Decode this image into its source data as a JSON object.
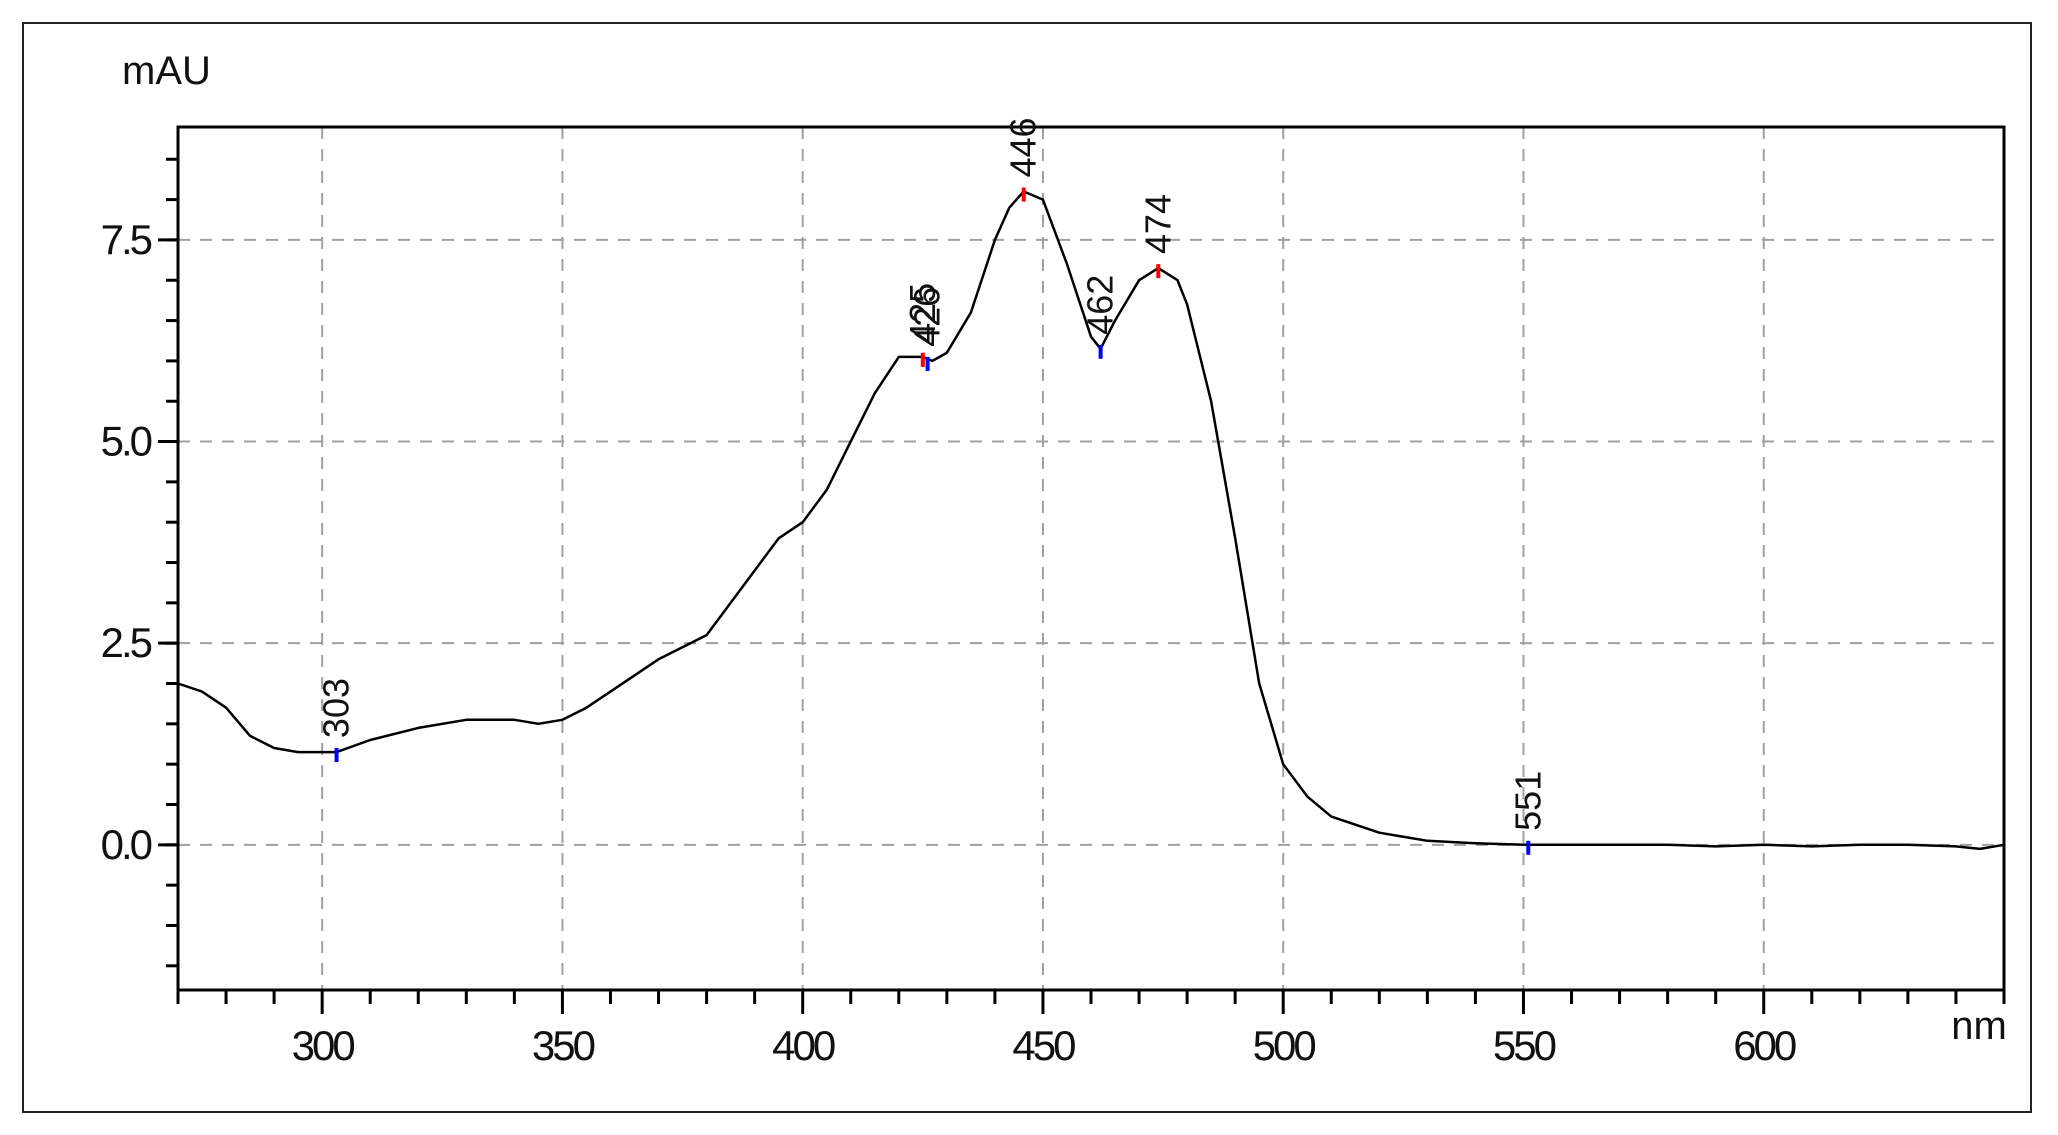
{
  "chart_data": {
    "type": "line",
    "ylabel": "mAU",
    "xlabel": "nm",
    "xlim": [
      270,
      650
    ],
    "ylim": [
      -1.8,
      8.9
    ],
    "x_ticks": [
      300,
      350,
      400,
      450,
      500,
      550,
      600
    ],
    "x_tick_labels": [
      "300",
      "350",
      "400",
      "450",
      "500",
      "550",
      "600"
    ],
    "y_ticks": [
      0.0,
      2.5,
      5.0,
      7.5
    ],
    "y_tick_labels": [
      "0.0",
      "2.5",
      "5.0",
      "7.5"
    ],
    "grid": true,
    "series": [
      {
        "x": [
          270,
          275,
          280,
          285,
          290,
          295,
          300,
          303,
          310,
          320,
          330,
          340,
          345,
          350,
          355,
          360,
          370,
          380,
          385,
          390,
          395,
          400,
          405,
          410,
          415,
          420,
          425,
          427,
          430,
          435,
          440,
          443,
          446,
          450,
          455,
          460,
          462,
          465,
          470,
          474,
          478,
          480,
          485,
          490,
          495,
          500,
          505,
          510,
          520,
          530,
          540,
          545,
          551,
          560,
          570,
          580,
          590,
          600,
          610,
          620,
          630,
          640,
          645,
          650
        ],
        "y": [
          2.0,
          1.9,
          1.7,
          1.35,
          1.2,
          1.15,
          1.15,
          1.15,
          1.3,
          1.45,
          1.55,
          1.55,
          1.5,
          1.55,
          1.7,
          1.9,
          2.3,
          2.6,
          3.0,
          3.4,
          3.8,
          4.0,
          4.4,
          5.0,
          5.6,
          6.05,
          6.05,
          6.0,
          6.1,
          6.6,
          7.5,
          7.9,
          8.1,
          8.0,
          7.2,
          6.3,
          6.15,
          6.5,
          7.0,
          7.15,
          7.0,
          6.7,
          5.5,
          3.8,
          2.0,
          1.0,
          0.6,
          0.35,
          0.15,
          0.05,
          0.02,
          0.01,
          0.0,
          0.0,
          0.0,
          0.0,
          -0.02,
          0.0,
          -0.02,
          0.0,
          0.0,
          -0.02,
          -0.05,
          0.0
        ]
      }
    ],
    "annotations": [
      {
        "x": 303,
        "y": 1.15,
        "label": "303",
        "kind": "valley",
        "color": "#0000ff"
      },
      {
        "x": 425,
        "y": 6.05,
        "label": "425",
        "kind": "peak",
        "color": "#ff0000"
      },
      {
        "x": 426,
        "y": 6.0,
        "label": "426",
        "kind": "valley",
        "color": "#0000ff"
      },
      {
        "x": 446,
        "y": 8.1,
        "label": "446",
        "kind": "peak",
        "color": "#ff0000"
      },
      {
        "x": 462,
        "y": 6.15,
        "label": "462",
        "kind": "valley",
        "color": "#0000ff"
      },
      {
        "x": 474,
        "y": 7.15,
        "label": "474",
        "kind": "peak",
        "color": "#ff0000"
      },
      {
        "x": 551,
        "y": 0.0,
        "label": "551",
        "kind": "valley",
        "color": "#0000ff"
      }
    ],
    "colors": {
      "line": "#000000",
      "grid": "#a0a0a0",
      "peak": "#ff0000",
      "valley": "#0000ff"
    }
  }
}
